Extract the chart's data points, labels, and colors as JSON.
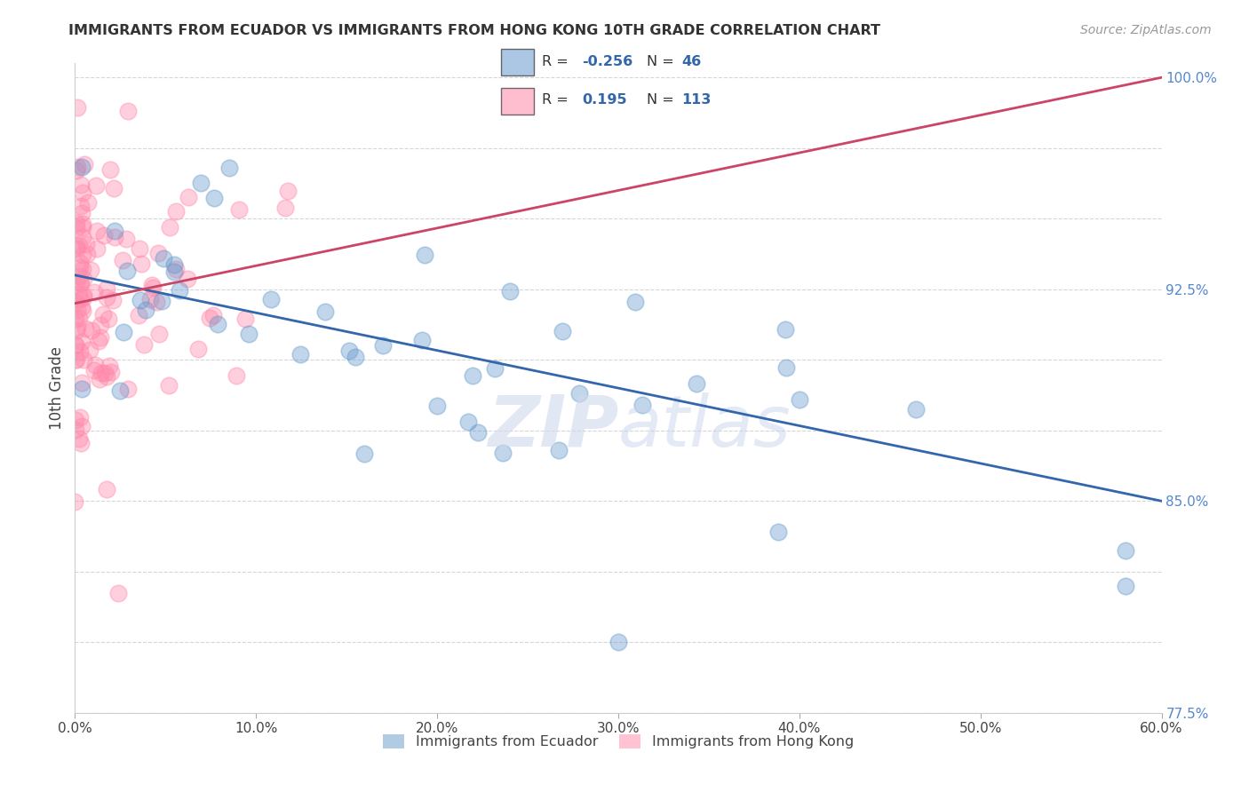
{
  "title": "IMMIGRANTS FROM ECUADOR VS IMMIGRANTS FROM HONG KONG 10TH GRADE CORRELATION CHART",
  "source": "Source: ZipAtlas.com",
  "ylabel": "10th Grade",
  "xlim": [
    0.0,
    0.6
  ],
  "ylim": [
    0.775,
    1.005
  ],
  "xticks": [
    0.0,
    0.1,
    0.2,
    0.3,
    0.4,
    0.5,
    0.6
  ],
  "xticklabels": [
    "0.0%",
    "10.0%",
    "20.0%",
    "30.0%",
    "40.0%",
    "50.0%",
    "60.0%"
  ],
  "yticks": [
    0.775,
    0.8,
    0.825,
    0.85,
    0.875,
    0.9,
    0.925,
    0.95,
    0.975,
    1.0
  ],
  "yticklabels": [
    "77.5%",
    "",
    "",
    "85.0%",
    "",
    "",
    "92.5%",
    "",
    "",
    "100.0%"
  ],
  "ecuador_color": "#6699CC",
  "hk_color": "#FF88AA",
  "ecuador_R": -0.256,
  "ecuador_N": 46,
  "hk_R": 0.195,
  "hk_N": 113,
  "legend_label_ecuador": "Immigrants from Ecuador",
  "legend_label_hk": "Immigrants from Hong Kong",
  "ecuador_line_x0": 0.0,
  "ecuador_line_y0": 0.93,
  "ecuador_line_x1": 0.6,
  "ecuador_line_y1": 0.85,
  "hk_line_x0": 0.0,
  "hk_line_y0": 0.92,
  "hk_line_x1": 0.6,
  "hk_line_y1": 1.0
}
